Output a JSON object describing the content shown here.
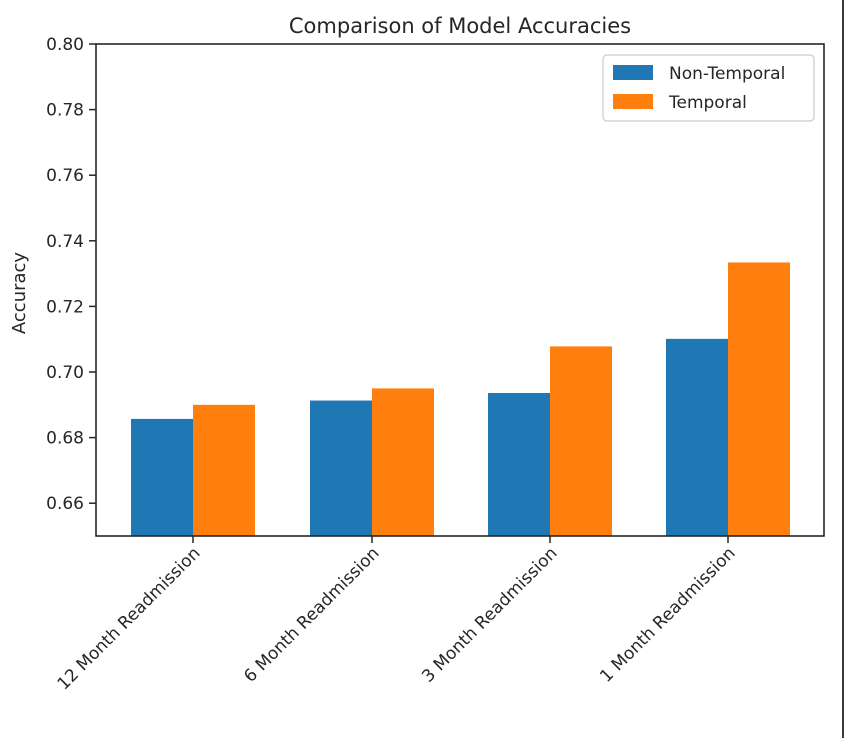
{
  "chart_data": {
    "type": "bar",
    "title": "Comparison of Model Accuracies",
    "xlabel": "",
    "ylabel": "Accuracy",
    "categories": [
      "12 Month Readmission",
      "6 Month Readmission",
      "3 Month Readmission",
      "1 Month Readmission"
    ],
    "series": [
      {
        "name": "Non-Temporal",
        "color": "#1f77b4",
        "values": [
          0.6857,
          0.6913,
          0.6936,
          0.7101
        ]
      },
      {
        "name": "Temporal",
        "color": "#ff7f0e",
        "values": [
          0.69,
          0.695,
          0.7078,
          0.7334
        ]
      }
    ],
    "ylim": [
      0.65,
      0.8
    ],
    "yticks": [
      0.66,
      0.68,
      0.7,
      0.72,
      0.74,
      0.76,
      0.78,
      0.8
    ],
    "ytick_labels": [
      "0.66",
      "0.68",
      "0.70",
      "0.72",
      "0.74",
      "0.76",
      "0.78",
      "0.80"
    ],
    "grid": false,
    "legend_position": "top-right",
    "x_tick_rotation_deg": 45
  }
}
